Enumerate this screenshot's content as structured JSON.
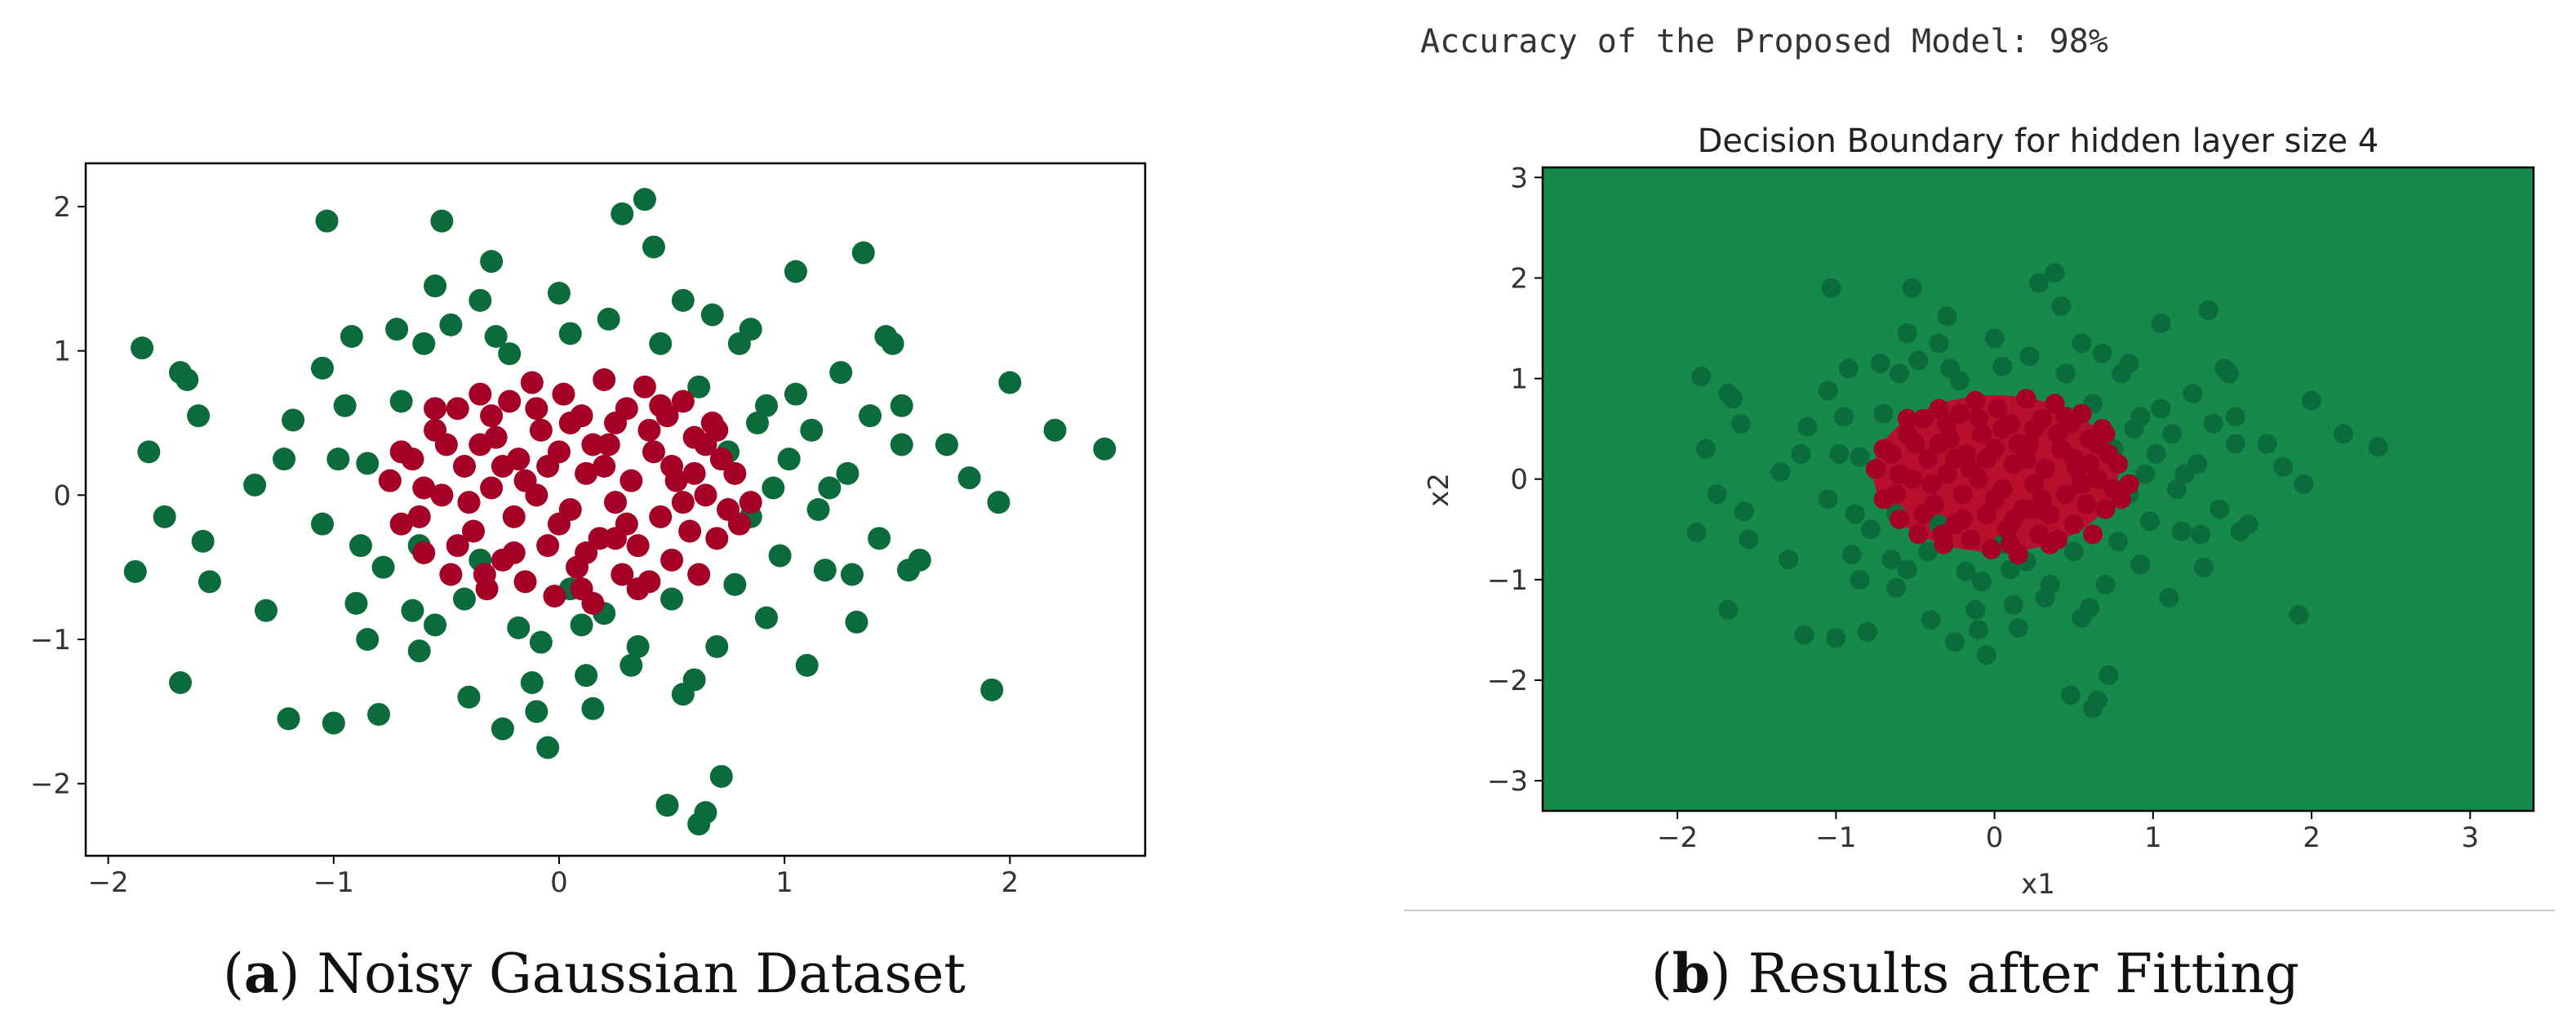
{
  "header": {
    "accuracy_text": "Accuracy of the Proposed Model: 98%"
  },
  "captions": {
    "a": {
      "tag": "a",
      "text": "Noisy Gaussian Dataset"
    },
    "b": {
      "tag": "b",
      "text": "Results after Fitting"
    }
  },
  "colors": {
    "class_outer": "#0b6b3a",
    "class_inner": "#a50026",
    "boundary_outer": "#168a4a",
    "boundary_inner": "#b80f2c"
  },
  "chart_data": [
    {
      "type": "scatter",
      "title": "",
      "xlabel": "",
      "ylabel": "",
      "xlim": [
        -2.1,
        2.6
      ],
      "ylim": [
        -2.5,
        2.3
      ],
      "xticks": [
        -2,
        -1,
        0,
        1,
        2
      ],
      "yticks": [
        -2,
        -1,
        0,
        1,
        2
      ],
      "grid": false,
      "legend": "none",
      "series": [
        {
          "class": "outer",
          "color": "#0b6b3a",
          "points": [
            [
              -1.85,
              1.02
            ],
            [
              -1.82,
              0.3
            ],
            [
              -1.75,
              -0.15
            ],
            [
              -1.68,
              0.85
            ],
            [
              -1.65,
              0.8
            ],
            [
              -1.6,
              0.55
            ],
            [
              -1.58,
              -0.32
            ],
            [
              -1.55,
              -0.6
            ],
            [
              -1.68,
              -1.3
            ],
            [
              -1.88,
              -0.53
            ],
            [
              -1.35,
              0.07
            ],
            [
              -1.3,
              -0.8
            ],
            [
              -1.22,
              0.25
            ],
            [
              -1.18,
              0.52
            ],
            [
              -1.2,
              -1.55
            ],
            [
              -1.05,
              0.88
            ],
            [
              -1.0,
              -1.58
            ],
            [
              -0.98,
              0.25
            ],
            [
              -0.8,
              -1.52
            ],
            [
              -1.03,
              1.9
            ],
            [
              -0.92,
              1.1
            ],
            [
              -0.85,
              0.22
            ],
            [
              -0.85,
              -1.0
            ],
            [
              -0.9,
              -0.75
            ],
            [
              -0.78,
              -0.5
            ],
            [
              -0.7,
              0.65
            ],
            [
              -0.65,
              -0.8
            ],
            [
              -0.6,
              1.05
            ],
            [
              -0.55,
              1.45
            ],
            [
              -0.55,
              -0.9
            ],
            [
              -0.52,
              1.9
            ],
            [
              -0.48,
              1.18
            ],
            [
              -0.42,
              -0.72
            ],
            [
              -0.4,
              -1.4
            ],
            [
              -0.3,
              1.62
            ],
            [
              -0.35,
              1.35
            ],
            [
              -0.28,
              1.1
            ],
            [
              -0.25,
              -1.62
            ],
            [
              -0.22,
              0.98
            ],
            [
              -0.18,
              -0.92
            ],
            [
              -0.12,
              -1.3
            ],
            [
              -0.1,
              -1.5
            ],
            [
              -0.05,
              -1.75
            ],
            [
              0.0,
              1.4
            ],
            [
              0.05,
              1.12
            ],
            [
              0.1,
              -0.9
            ],
            [
              0.12,
              -1.25
            ],
            [
              0.15,
              -1.48
            ],
            [
              0.2,
              -0.82
            ],
            [
              0.22,
              1.22
            ],
            [
              0.28,
              1.95
            ],
            [
              0.32,
              -1.18
            ],
            [
              0.38,
              2.05
            ],
            [
              0.42,
              1.72
            ],
            [
              0.45,
              1.05
            ],
            [
              0.5,
              -0.72
            ],
            [
              0.55,
              -1.38
            ],
            [
              0.6,
              -1.28
            ],
            [
              0.62,
              0.75
            ],
            [
              0.65,
              -2.2
            ],
            [
              0.68,
              1.25
            ],
            [
              0.72,
              -1.95
            ],
            [
              0.7,
              -1.05
            ],
            [
              0.75,
              0.3
            ],
            [
              0.78,
              -0.62
            ],
            [
              0.8,
              1.05
            ],
            [
              0.85,
              -0.15
            ],
            [
              0.88,
              0.5
            ],
            [
              0.92,
              -0.85
            ],
            [
              0.95,
              0.05
            ],
            [
              0.98,
              -0.42
            ],
            [
              1.02,
              0.25
            ],
            [
              1.05,
              1.55
            ],
            [
              1.05,
              0.7
            ],
            [
              1.1,
              -1.18
            ],
            [
              1.12,
              0.45
            ],
            [
              1.15,
              -0.1
            ],
            [
              1.18,
              -0.52
            ],
            [
              1.25,
              0.85
            ],
            [
              1.28,
              0.15
            ],
            [
              1.32,
              -0.88
            ],
            [
              1.35,
              1.68
            ],
            [
              1.38,
              0.55
            ],
            [
              1.42,
              -0.3
            ],
            [
              1.48,
              1.05
            ],
            [
              1.52,
              0.62
            ],
            [
              1.52,
              0.35
            ],
            [
              1.55,
              -0.52
            ],
            [
              1.6,
              -0.45
            ],
            [
              1.72,
              0.35
            ],
            [
              1.82,
              0.12
            ],
            [
              1.92,
              -1.35
            ],
            [
              1.95,
              -0.05
            ],
            [
              2.0,
              0.78
            ],
            [
              2.2,
              0.45
            ],
            [
              2.42,
              0.32
            ],
            [
              -0.95,
              0.62
            ],
            [
              -0.72,
              1.15
            ],
            [
              -0.62,
              -0.35
            ],
            [
              -0.35,
              -0.45
            ],
            [
              0.05,
              -0.65
            ],
            [
              0.55,
              1.35
            ],
            [
              0.85,
              1.15
            ],
            [
              1.2,
              0.05
            ],
            [
              -1.05,
              -0.2
            ],
            [
              -0.88,
              -0.35
            ],
            [
              0.92,
              0.62
            ],
            [
              0.48,
              -2.15
            ],
            [
              0.62,
              -2.28
            ],
            [
              -0.08,
              -1.02
            ],
            [
              0.35,
              -1.05
            ],
            [
              -0.62,
              -1.08
            ],
            [
              1.3,
              -0.55
            ],
            [
              1.45,
              1.1
            ]
          ]
        },
        {
          "class": "inner",
          "color": "#a50026",
          "points": [
            [
              -0.75,
              0.1
            ],
            [
              -0.7,
              -0.2
            ],
            [
              -0.65,
              0.25
            ],
            [
              -0.6,
              -0.4
            ],
            [
              -0.55,
              0.45
            ],
            [
              -0.52,
              0.0
            ],
            [
              -0.48,
              -0.55
            ],
            [
              -0.45,
              0.6
            ],
            [
              -0.42,
              0.2
            ],
            [
              -0.38,
              -0.25
            ],
            [
              -0.35,
              0.7
            ],
            [
              -0.32,
              -0.65
            ],
            [
              -0.3,
              0.05
            ],
            [
              -0.28,
              0.4
            ],
            [
              -0.25,
              -0.45
            ],
            [
              -0.22,
              0.65
            ],
            [
              -0.2,
              -0.15
            ],
            [
              -0.18,
              0.25
            ],
            [
              -0.15,
              -0.6
            ],
            [
              -0.12,
              0.78
            ],
            [
              -0.1,
              0.0
            ],
            [
              -0.08,
              0.45
            ],
            [
              -0.05,
              -0.35
            ],
            [
              -0.02,
              -0.7
            ],
            [
              0.0,
              0.3
            ],
            [
              0.02,
              0.7
            ],
            [
              0.05,
              -0.1
            ],
            [
              0.08,
              -0.5
            ],
            [
              0.1,
              0.55
            ],
            [
              0.12,
              0.15
            ],
            [
              0.15,
              -0.75
            ],
            [
              0.18,
              -0.3
            ],
            [
              0.2,
              0.8
            ],
            [
              0.22,
              0.35
            ],
            [
              0.25,
              -0.05
            ],
            [
              0.28,
              -0.55
            ],
            [
              0.3,
              0.6
            ],
            [
              0.32,
              0.1
            ],
            [
              0.35,
              -0.35
            ],
            [
              0.38,
              0.75
            ],
            [
              0.4,
              -0.6
            ],
            [
              0.42,
              0.3
            ],
            [
              0.45,
              -0.15
            ],
            [
              0.48,
              0.55
            ],
            [
              0.5,
              -0.45
            ],
            [
              0.52,
              0.1
            ],
            [
              0.55,
              0.65
            ],
            [
              0.58,
              -0.25
            ],
            [
              0.6,
              0.4
            ],
            [
              0.62,
              -0.55
            ],
            [
              0.65,
              0.0
            ],
            [
              0.68,
              0.5
            ],
            [
              0.7,
              -0.3
            ],
            [
              0.72,
              0.25
            ],
            [
              0.75,
              -0.1
            ],
            [
              0.78,
              0.15
            ],
            [
              0.8,
              -0.2
            ],
            [
              -0.6,
              0.05
            ],
            [
              -0.5,
              0.35
            ],
            [
              -0.4,
              -0.05
            ],
            [
              -0.3,
              0.55
            ],
            [
              -0.2,
              -0.4
            ],
            [
              -0.1,
              0.6
            ],
            [
              0.0,
              -0.2
            ],
            [
              0.1,
              -0.65
            ],
            [
              0.2,
              0.2
            ],
            [
              0.3,
              -0.2
            ],
            [
              0.4,
              0.45
            ],
            [
              0.5,
              0.2
            ],
            [
              0.6,
              0.15
            ],
            [
              -0.45,
              -0.35
            ],
            [
              -0.35,
              0.35
            ],
            [
              -0.15,
              0.1
            ],
            [
              0.05,
              0.5
            ],
            [
              0.25,
              0.5
            ],
            [
              0.35,
              -0.65
            ],
            [
              0.45,
              0.62
            ],
            [
              -0.7,
              0.3
            ],
            [
              -0.62,
              -0.15
            ],
            [
              -0.55,
              0.6
            ],
            [
              -0.25,
              0.2
            ],
            [
              0.15,
              0.35
            ],
            [
              0.55,
              -0.05
            ],
            [
              0.65,
              0.35
            ],
            [
              0.7,
              0.45
            ],
            [
              -0.05,
              0.2
            ],
            [
              0.12,
              -0.4
            ],
            [
              0.25,
              -0.3
            ],
            [
              -0.33,
              -0.55
            ],
            [
              0.85,
              -0.05
            ]
          ]
        }
      ]
    },
    {
      "type": "scatter",
      "title": "Decision Boundary for hidden layer size 4",
      "xlabel": "x1",
      "ylabel": "x2",
      "xlim": [
        -2.85,
        3.4
      ],
      "ylim": [
        -3.3,
        3.1
      ],
      "xticks": [
        -2,
        -1,
        0,
        1,
        2,
        3
      ],
      "yticks": [
        -3,
        -2,
        -1,
        0,
        1,
        2,
        3
      ],
      "grid": false,
      "legend": "none",
      "background": "decision boundary: outer class everywhere, inner class inside an ellipse centered near (0.05, 0.0)"
    }
  ]
}
